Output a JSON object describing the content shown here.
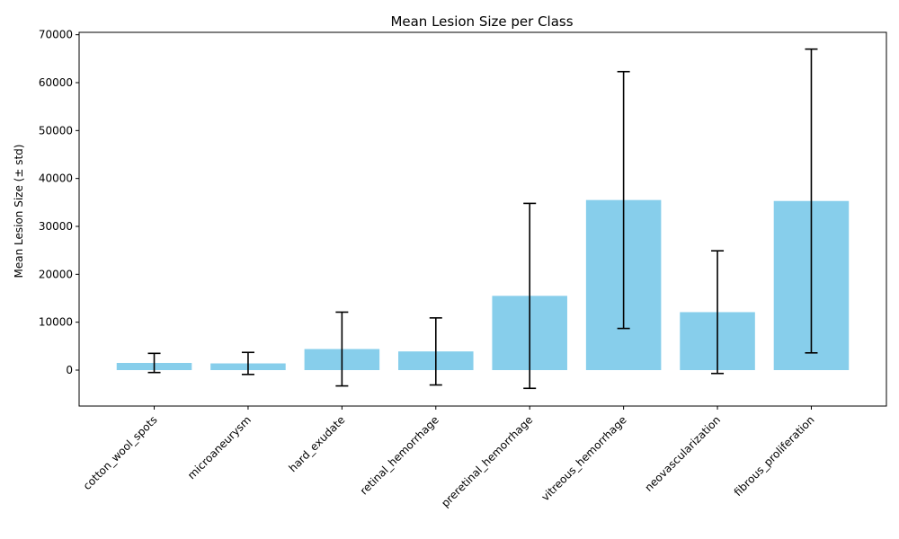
{
  "chart_data": {
    "type": "bar",
    "title": "Mean Lesion Size per Class",
    "xlabel": "",
    "ylabel": "Mean Lesion Size (± std)",
    "categories": [
      "cotton_wool_spots",
      "microaneurysm",
      "hard_exudate",
      "retinal_hemorrhage",
      "preretinal_hemorrhage",
      "vitreous_hemorrhage",
      "neovascularization",
      "fibrous_proliferation"
    ],
    "values": [
      1500,
      1400,
      4400,
      3900,
      15500,
      35500,
      12100,
      35300
    ],
    "std": [
      2000,
      2300,
      7700,
      7000,
      19300,
      26800,
      12800,
      31700
    ],
    "ylim": [
      -7500,
      70500
    ],
    "yticks": [
      0,
      10000,
      20000,
      30000,
      40000,
      50000,
      60000,
      70000
    ],
    "bar_color": "#87ceeb",
    "error_color": "#000000",
    "grid": false,
    "legend": "none"
  }
}
